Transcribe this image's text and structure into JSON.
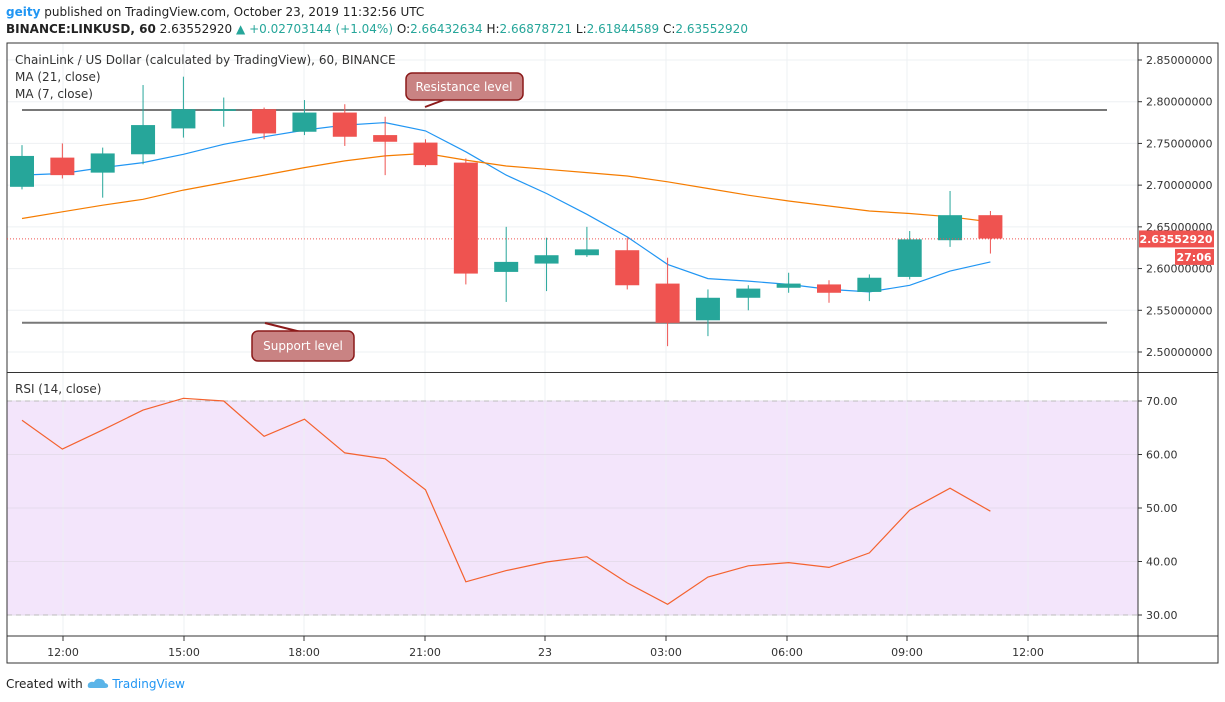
{
  "header": {
    "user": "geity",
    "published": "published on TradingView.com, October 23, 2019 11:32:56 UTC",
    "symbol": "BINANCE:LINKUSD, 60",
    "price": "2.63552920",
    "change_arrow": "▲",
    "change": "+0.02703144 (+1.04%)",
    "o_label": "O:",
    "o": "2.66432634",
    "h_label": "H:",
    "h": "2.66878721",
    "l_label": "L:",
    "l": "2.61844589",
    "c_label": "C:",
    "c": "2.63552920"
  },
  "legend": {
    "title": "ChainLink / US Dollar (calculated by TradingView), 60, BINANCE",
    "ma21": "MA (21, close)",
    "ma7": "MA (7, close)",
    "rsi": "RSI (14, close)"
  },
  "annotations": {
    "resistance": "Resistance level",
    "support": "Support level"
  },
  "price_badge": "2.63552920",
  "countdown_badge": "27:06",
  "footer": {
    "created": "Created with",
    "brand": "TradingView"
  },
  "colors": {
    "up": "#26a69a",
    "down": "#ef5350",
    "ma7": "#2196f3",
    "ma21": "#f57c00",
    "rsi": "#f4622f",
    "rsi_band": "#f3e5fb",
    "annotation": "#c98383"
  },
  "chart_data": [
    {
      "type": "candlestick",
      "title": "ChainLink / US Dollar (calculated by TradingView), 60, BINANCE",
      "y_ticks": [
        "2.85000000",
        "2.80000000",
        "2.75000000",
        "2.70000000",
        "2.65000000",
        "2.60000000",
        "2.55000000",
        "2.50000000"
      ],
      "ylim": [
        2.48,
        2.86
      ],
      "x_ticks": [
        "12:00",
        "15:00",
        "18:00",
        "21:00",
        "23",
        "03:00",
        "06:00",
        "09:00",
        "12:00"
      ],
      "candles": [
        {
          "o": 2.698,
          "h": 2.748,
          "l": 2.695,
          "c": 2.735
        },
        {
          "o": 2.733,
          "h": 2.75,
          "l": 2.708,
          "c": 2.712
        },
        {
          "o": 2.715,
          "h": 2.745,
          "l": 2.685,
          "c": 2.738
        },
        {
          "o": 2.737,
          "h": 2.82,
          "l": 2.725,
          "c": 2.772
        },
        {
          "o": 2.768,
          "h": 2.83,
          "l": 2.757,
          "c": 2.791
        },
        {
          "o": 2.789,
          "h": 2.805,
          "l": 2.77,
          "c": 2.791
        },
        {
          "o": 2.791,
          "h": 2.793,
          "l": 2.755,
          "c": 2.762
        },
        {
          "o": 2.764,
          "h": 2.802,
          "l": 2.76,
          "c": 2.787
        },
        {
          "o": 2.787,
          "h": 2.797,
          "l": 2.747,
          "c": 2.758
        },
        {
          "o": 2.76,
          "h": 2.782,
          "l": 2.712,
          "c": 2.752
        },
        {
          "o": 2.751,
          "h": 2.755,
          "l": 2.722,
          "c": 2.724
        },
        {
          "o": 2.727,
          "h": 2.732,
          "l": 2.581,
          "c": 2.594
        },
        {
          "o": 2.596,
          "h": 2.65,
          "l": 2.56,
          "c": 2.608
        },
        {
          "o": 2.606,
          "h": 2.637,
          "l": 2.573,
          "c": 2.616
        },
        {
          "o": 2.616,
          "h": 2.65,
          "l": 2.614,
          "c": 2.623
        },
        {
          "o": 2.622,
          "h": 2.637,
          "l": 2.575,
          "c": 2.58
        },
        {
          "o": 2.582,
          "h": 2.613,
          "l": 2.507,
          "c": 2.535
        },
        {
          "o": 2.538,
          "h": 2.575,
          "l": 2.519,
          "c": 2.565
        },
        {
          "o": 2.565,
          "h": 2.58,
          "l": 2.55,
          "c": 2.576
        },
        {
          "o": 2.577,
          "h": 2.595,
          "l": 2.571,
          "c": 2.582
        },
        {
          "o": 2.581,
          "h": 2.586,
          "l": 2.559,
          "c": 2.571
        },
        {
          "o": 2.572,
          "h": 2.593,
          "l": 2.561,
          "c": 2.589
        },
        {
          "o": 2.59,
          "h": 2.645,
          "l": 2.587,
          "c": 2.635
        },
        {
          "o": 2.634,
          "h": 2.693,
          "l": 2.626,
          "c": 2.664
        },
        {
          "o": 2.664,
          "h": 2.669,
          "l": 2.618,
          "c": 2.636
        }
      ],
      "series": [
        {
          "name": "MA (7, close)",
          "type": "line",
          "values": [
            2.712,
            2.714,
            2.721,
            2.727,
            2.737,
            2.749,
            2.758,
            2.766,
            2.772,
            2.775,
            2.765,
            2.74,
            2.712,
            2.69,
            2.665,
            2.638,
            2.605,
            2.588,
            2.585,
            2.581,
            2.575,
            2.572,
            2.58,
            2.597,
            2.608
          ]
        },
        {
          "name": "MA (21, close)",
          "type": "line",
          "values": [
            2.66,
            2.668,
            2.676,
            2.683,
            2.694,
            2.703,
            2.712,
            2.721,
            2.729,
            2.735,
            2.738,
            2.73,
            2.723,
            2.719,
            2.715,
            2.711,
            2.704,
            2.696,
            2.688,
            2.681,
            2.675,
            2.669,
            2.666,
            2.662,
            2.656
          ]
        }
      ],
      "resistance_level": 2.79,
      "support_level": 2.535
    },
    {
      "type": "line",
      "title": "RSI (14, close)",
      "y_ticks": [
        "70.00",
        "60.00",
        "50.00",
        "40.00",
        "30.00"
      ],
      "ylim": [
        26,
        73
      ],
      "band": [
        30,
        70
      ],
      "series": [
        {
          "name": "RSI (14, close)",
          "values": [
            66.4,
            61.0,
            64.6,
            68.3,
            70.5,
            70.0,
            63.4,
            66.6,
            60.3,
            59.2,
            53.4,
            36.2,
            38.3,
            39.9,
            40.9,
            36.0,
            32.0,
            37.1,
            39.2,
            39.8,
            38.9,
            41.6,
            49.6,
            53.7,
            49.4
          ]
        }
      ]
    }
  ]
}
